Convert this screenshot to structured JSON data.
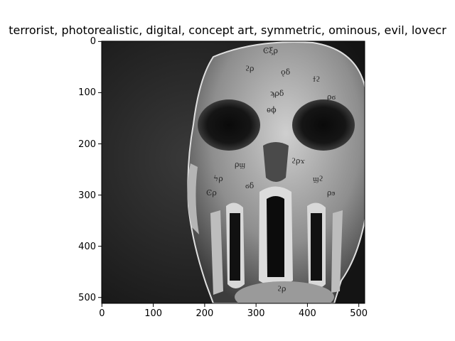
{
  "chart_data": {
    "type": "image",
    "title": "terrorist,  photorealistic, digital, concept art, symmetric, ominous, evil, lovecr",
    "image_depiction": "grayscale photorealistic skull-like mask with cryptic glyph engravings and vertical tendril slits over the mouth",
    "x_ticks": [
      0,
      100,
      200,
      300,
      400,
      500
    ],
    "y_ticks": [
      0,
      100,
      200,
      300,
      400,
      500
    ],
    "xlim": [
      0,
      512
    ],
    "ylim": [
      512,
      0
    ],
    "colormap": "gray",
    "grid": false
  }
}
